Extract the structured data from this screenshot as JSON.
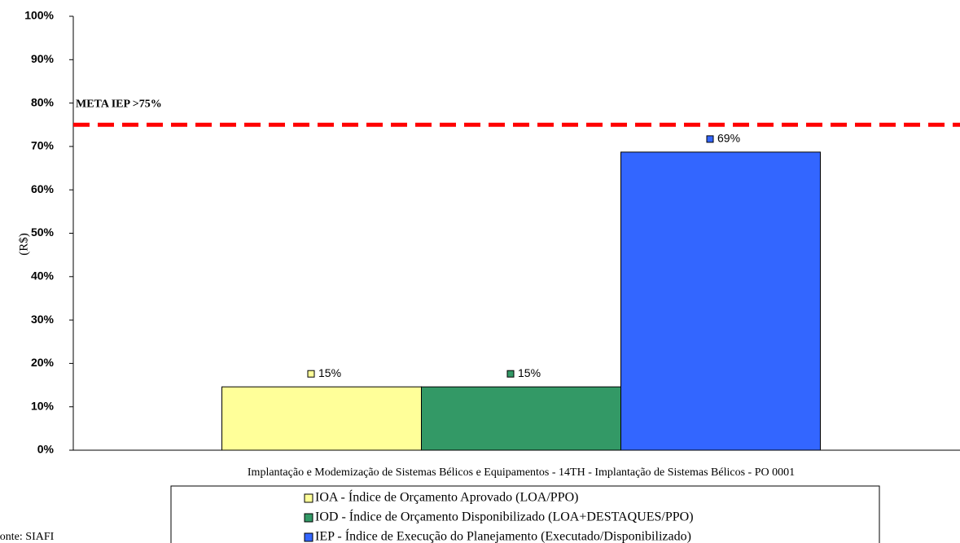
{
  "chart_data": {
    "type": "bar",
    "y_label": "(R$)",
    "categories": [
      "Implantação e Modemização de Sistemas Bélicos e Equipamentos - 14TH - Implantação de Sistemas Bélicos - PO 0001"
    ],
    "series": [
      {
        "name": "IOA - Índice de Orçamento Aprovado (LOA/PPO)",
        "color": "#ffff99",
        "values": [
          14.6
        ],
        "value_labels": [
          "15%"
        ]
      },
      {
        "name": "IOD - Índice de Orçamento Disponibilizado (LOA+DESTAQUES/PPO)",
        "color": "#339966",
        "values": [
          14.6
        ],
        "value_labels": [
          "15%"
        ]
      },
      {
        "name": "IEP - Índice de Execução do Planejamento (Executado/Disponibilizado)",
        "color": "#3366ff",
        "values": [
          68.7
        ],
        "value_labels": [
          "69%"
        ]
      }
    ],
    "reference_line": {
      "value": 75,
      "label": "META IEP >75%",
      "color": "#ff0000"
    },
    "ylim": [
      0,
      100
    ],
    "yticks": [
      {
        "value": 0,
        "label": "0%"
      },
      {
        "value": 10,
        "label": "10%"
      },
      {
        "value": 20,
        "label": "20%"
      },
      {
        "value": 30,
        "label": "30%"
      },
      {
        "value": 40,
        "label": "40%"
      },
      {
        "value": 50,
        "label": "50%"
      },
      {
        "value": 60,
        "label": "60%"
      },
      {
        "value": 70,
        "label": "70%"
      },
      {
        "value": 80,
        "label": "80%"
      },
      {
        "value": 90,
        "label": "90%"
      },
      {
        "value": 100,
        "label": "100%"
      }
    ],
    "source": "Fonte: SIAFI"
  }
}
